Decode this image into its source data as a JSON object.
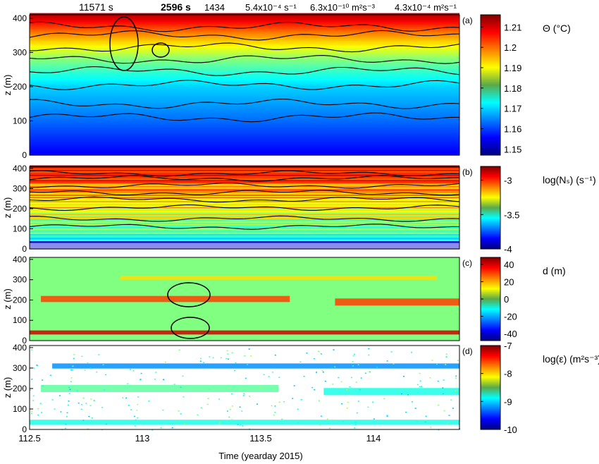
{
  "figure": {
    "xlabel": "Time (yearday 2015)",
    "xticks": [
      "112.5",
      "113",
      "113.5",
      "114"
    ],
    "annotations": [
      {
        "text": "11571 s",
        "color": "#d61fd6"
      },
      {
        "text": "2596 s",
        "color": "#22b83a"
      },
      {
        "text": "1434",
        "color": "#3fd6e0"
      },
      {
        "text": "5.4x10⁻⁴ s⁻¹",
        "color": "#1a1a9e"
      },
      {
        "text": "6.3x10⁻¹⁰ m²s⁻³",
        "color": "#c01818"
      },
      {
        "text": "4.3x10⁻⁴ m²s⁻¹",
        "color": "#000000"
      }
    ]
  },
  "chart_data": [
    {
      "type": "heatmap",
      "panel": "(a)",
      "ylabel": "z (m)",
      "yticks": [
        0,
        100,
        200,
        300,
        400
      ],
      "ylim": [
        0,
        410
      ],
      "xlim": [
        112.5,
        114.4
      ],
      "colorbar": {
        "label": "Θ (°C)",
        "ticks": [
          "1.21",
          "1.2",
          "1.19",
          "1.18",
          "1.17",
          "1.16",
          "1.15"
        ],
        "min": 1.147,
        "max": 1.216,
        "colormap": "jet"
      },
      "profile": {
        "z": [
          0,
          100,
          200,
          280,
          360,
          410
        ],
        "value": [
          1.155,
          1.163,
          1.17,
          1.182,
          1.2,
          1.213
        ]
      },
      "isotherm_depths": [
        110,
        150,
        205,
        245,
        280,
        315,
        350,
        375
      ]
    },
    {
      "type": "heatmap",
      "panel": "(b)",
      "ylabel": "z (m)",
      "yticks": [
        0,
        100,
        200,
        300,
        400
      ],
      "ylim": [
        0,
        410
      ],
      "xlim": [
        112.5,
        114.4
      ],
      "colorbar": {
        "label": "log(Nₛ) (s⁻¹)",
        "ticks": [
          "-3",
          "-3.5",
          "-4"
        ],
        "min": -4,
        "max": -2.8,
        "colormap": "jet"
      },
      "isotherm_depths": [
        110,
        150,
        205,
        245,
        280,
        315,
        350,
        375
      ]
    },
    {
      "type": "heatmap",
      "panel": "(c)",
      "ylabel": "z (m)",
      "yticks": [
        0,
        100,
        200,
        300,
        400
      ],
      "ylim": [
        0,
        410
      ],
      "xlim": [
        112.5,
        114.4
      ],
      "colorbar": {
        "label": "d (m)",
        "ticks": [
          "40",
          "20",
          "0",
          "-20",
          "-40"
        ],
        "min": -48,
        "max": 48,
        "colormap": "jet"
      },
      "layers": [
        {
          "x": [
            112.5,
            114.4
          ],
          "z": 40,
          "thickness": 20,
          "value": 40
        },
        {
          "x": [
            112.55,
            113.65
          ],
          "z": 205,
          "thickness": 30,
          "value": 30
        },
        {
          "x": [
            113.85,
            114.4
          ],
          "z": 190,
          "thickness": 35,
          "value": 30
        },
        {
          "x": [
            112.9,
            114.3
          ],
          "z": 310,
          "thickness": 20,
          "value": 15
        }
      ]
    },
    {
      "type": "heatmap",
      "panel": "(d)",
      "ylabel": "z (m)",
      "yticks": [
        0,
        100,
        200,
        300,
        400
      ],
      "ylim": [
        0,
        410
      ],
      "xlim": [
        112.5,
        114.4
      ],
      "colorbar": {
        "label": "log(ε) (m²s⁻³)",
        "ticks": [
          "-7",
          "-8",
          "-9",
          "-10"
        ],
        "min": -10,
        "max": -7,
        "colormap": "jet"
      },
      "layers": [
        {
          "x": [
            112.5,
            114.4
          ],
          "z": 35,
          "thickness": 25,
          "value": -8.8
        },
        {
          "x": [
            112.55,
            113.6
          ],
          "z": 200,
          "thickness": 35,
          "value": -8.6
        },
        {
          "x": [
            113.8,
            114.4
          ],
          "z": 185,
          "thickness": 35,
          "value": -8.8
        },
        {
          "x": [
            112.6,
            114.4
          ],
          "z": 310,
          "thickness": 25,
          "value": -9.2
        }
      ]
    }
  ]
}
